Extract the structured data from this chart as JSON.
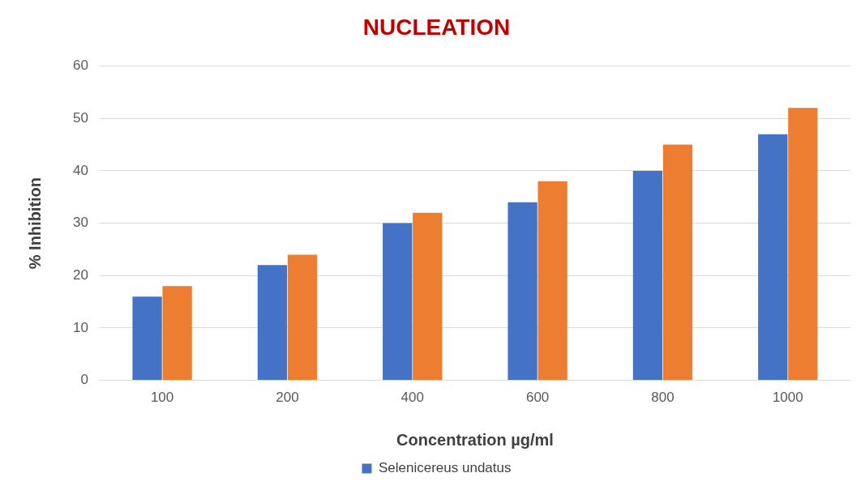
{
  "chart_data": {
    "type": "bar",
    "title": "NUCLEATION",
    "xlabel": "Concentration µg/ml",
    "ylabel": "% Inhibition",
    "categories": [
      "100",
      "200",
      "400",
      "600",
      "800",
      "1000"
    ],
    "series": [
      {
        "name": "Selenicereus undatus",
        "color": "#4472c4",
        "values": [
          16,
          22,
          30,
          34,
          40,
          47
        ]
      },
      {
        "color": "#ed7d31",
        "values": [
          18,
          24,
          32,
          38,
          45,
          52
        ]
      }
    ],
    "ylim": [
      0,
      60
    ],
    "yticks": [
      0,
      10,
      20,
      30,
      40,
      50,
      60
    ],
    "grid": "y",
    "legend": "bottom"
  }
}
